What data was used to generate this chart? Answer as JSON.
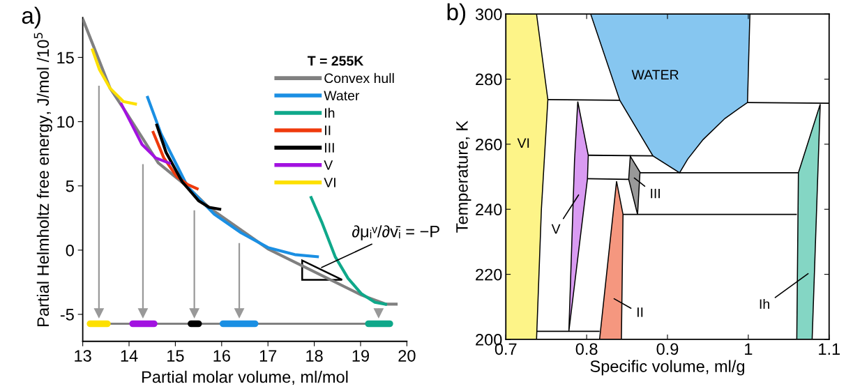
{
  "chart_data": [
    {
      "type": "line",
      "title": "a)",
      "xlabel": "Partial molar volume, ml/mol",
      "ylabel": "Partial Helmholtz free energy, J/mol /10$^{5}$",
      "legend_title": "T = 255K",
      "legend": "top right",
      "grid": false,
      "xlim": [
        13,
        20
      ],
      "xticks": [
        13,
        14,
        15,
        16,
        17,
        18,
        19,
        20
      ],
      "ylim": [
        -7.1,
        18.1
      ],
      "yticks": [
        {
          "value": -5,
          "label": "-5"
        },
        0,
        5,
        10,
        15
      ],
      "series": [
        {
          "name": "Convex hull",
          "color": "#808080",
          "x": [
            13.0,
            13.59,
            13.94,
            14.63,
            15.27,
            15.73,
            17.0,
            19.02,
            19.54,
            19.8
          ],
          "values": [
            18.0,
            12.6,
            10.7,
            6.8,
            4.9,
            3.3,
            0.1,
            -3.5,
            -4.2,
            -4.2
          ]
        },
        {
          "name": "Water",
          "color": "#1a8fe3",
          "x": [
            14.39,
            14.69,
            15.27,
            15.84,
            16.42,
            17.0,
            17.58,
            18.1
          ],
          "values": [
            12.0,
            9.06,
            4.9,
            2.8,
            1.35,
            0.2,
            -0.35,
            -0.52
          ]
        },
        {
          "name": "Ih",
          "color": "#0fa88a",
          "x": [
            17.92,
            18.16,
            18.45,
            18.73,
            19.02,
            19.31,
            19.57
          ],
          "values": [
            4.2,
            2.2,
            -0.5,
            -2.2,
            -3.4,
            -4.06,
            -4.23
          ]
        },
        {
          "name": "II",
          "color": "#ef3a0c",
          "x": [
            14.51,
            14.75,
            15.03,
            15.27,
            15.5
          ],
          "values": [
            9.27,
            7.19,
            5.73,
            5.1,
            4.73
          ]
        },
        {
          "name": "III",
          "color": "#000000",
          "x": [
            14.59,
            14.8,
            15.15,
            15.5,
            15.73,
            15.99
          ],
          "values": [
            9.83,
            7.6,
            5.31,
            3.85,
            3.33,
            3.17
          ]
        },
        {
          "name": "V",
          "color": "#a212e0",
          "x": [
            13.82,
            14.0,
            14.28,
            14.57,
            14.9
          ],
          "values": [
            11.46,
            10.2,
            8.23,
            7.19,
            6.73
          ]
        },
        {
          "name": "VI",
          "color": "#fde000",
          "x": [
            13.2,
            13.36,
            13.59,
            13.88,
            14.17
          ],
          "values": [
            15.69,
            14.06,
            12.6,
            11.56,
            11.35
          ]
        },
        {
          "color": "#808080",
          "x": [
            13.53,
            19.17
          ],
          "values": [
            -5.73,
            -5.73
          ]
        },
        {
          "color": "#fde000",
          "x": [
            13.16,
            13.53
          ],
          "values": [
            -5.73,
            -5.73
          ]
        },
        {
          "color": "#a212e0",
          "x": [
            14.08,
            14.54
          ],
          "values": [
            -5.73,
            -5.73
          ]
        },
        {
          "color": "#000000",
          "x": [
            15.34,
            15.5
          ],
          "values": [
            -5.73,
            -5.73
          ]
        },
        {
          "color": "#1a8fe3",
          "x": [
            16.03,
            16.72
          ],
          "values": [
            -5.73,
            -5.73
          ]
        },
        {
          "color": "#0fa88a",
          "x": [
            19.17,
            19.63
          ],
          "values": [
            -5.73,
            -5.73
          ]
        },
        {
          "color": "#999999",
          "marker": "triangle",
          "x": [
            13.35,
            13.35
          ],
          "values": [
            12.8,
            -4.9
          ]
        },
        {
          "color": "#999999",
          "marker": "triangle",
          "x": [
            14.3,
            14.3
          ],
          "values": [
            6.7,
            -4.9
          ]
        },
        {
          "color": "#999999",
          "marker": "triangle",
          "x": [
            15.41,
            15.41
          ],
          "values": [
            3.1,
            -4.9
          ]
        },
        {
          "color": "#999999",
          "marker": "triangle",
          "x": [
            16.38,
            16.38
          ],
          "values": [
            0.55,
            -4.9
          ]
        },
        {
          "color": "#999999",
          "marker": "triangle",
          "x": [
            19.39,
            19.39
          ],
          "values": [
            -4.55,
            -4.9
          ]
        }
      ],
      "annotations": [
        "∂μᵢᵛ/∂v̄ᵢ = −P"
      ]
    },
    {
      "type": "area",
      "title": "b)",
      "xlabel": "Specific volume, ml/g",
      "ylabel": "Temperature, K",
      "grid": false,
      "xlim": [
        0.7,
        1.1
      ],
      "xticks": [
        0.7,
        0.8,
        0.9,
        {
          "value": 1,
          "label": "1"
        },
        1.1
      ],
      "ylim": [
        200,
        300
      ],
      "yticks": [
        200,
        220,
        240,
        260,
        280,
        300
      ],
      "series": [
        {
          "color": "#fdf488",
          "x": [
            0.7,
            0.738,
            0.744,
            0.752,
            0.738,
            0.7
          ],
          "values": [
            200,
            200,
            240,
            273.7,
            300,
            300
          ]
        },
        {
          "color": "#86c6f0",
          "x": [
            0.805,
            1.002,
            0.999,
            0.989,
            0.971,
            0.944,
            0.925,
            0.915,
            0.882,
            0.841
          ],
          "values": [
            300,
            300,
            272.8,
            271.1,
            267.9,
            261.4,
            255.4,
            251.2,
            256.4,
            273.5
          ]
        },
        {
          "color": "#d99bf2",
          "x": [
            0.789,
            0.802,
            0.801,
            0.778,
            0.785
          ],
          "values": [
            273.1,
            256.6,
            249.4,
            202.5,
            255
          ]
        },
        {
          "color": "#999999",
          "x": [
            0.854,
            0.866,
            0.863,
            0.852
          ],
          "values": [
            256.3,
            251.4,
            238.4,
            249.2
          ]
        },
        {
          "color": "#f5977f",
          "x": [
            0.837,
            0.845,
            0.843,
            0.816
          ],
          "values": [
            248.6,
            238.4,
            200,
            200
          ]
        },
        {
          "color": "#84d6c4",
          "x": [
            1.089,
            1.062,
            1.06,
            1.079
          ],
          "values": [
            272.3,
            251.2,
            200,
            200
          ]
        },
        {
          "type": "line",
          "color": "#000000",
          "x": [
            0.752,
            0.841,
            null,
            0.999,
            1.1,
            null,
            0.802,
            0.882,
            null,
            0.801,
            0.852,
            null,
            0.866,
            1.062,
            null,
            0.845,
            1.06,
            null,
            0.738,
            0.816
          ],
          "values": [
            273.7,
            273.5,
            null,
            272.8,
            272.6,
            null,
            256.6,
            256.4,
            null,
            249.4,
            249.2,
            null,
            251.2,
            251.2,
            null,
            238.4,
            238.4,
            null,
            202.5,
            202.5
          ]
        }
      ],
      "annotations": [
        "VI",
        "WATER",
        "V",
        "III",
        "II",
        "Ih"
      ]
    }
  ]
}
